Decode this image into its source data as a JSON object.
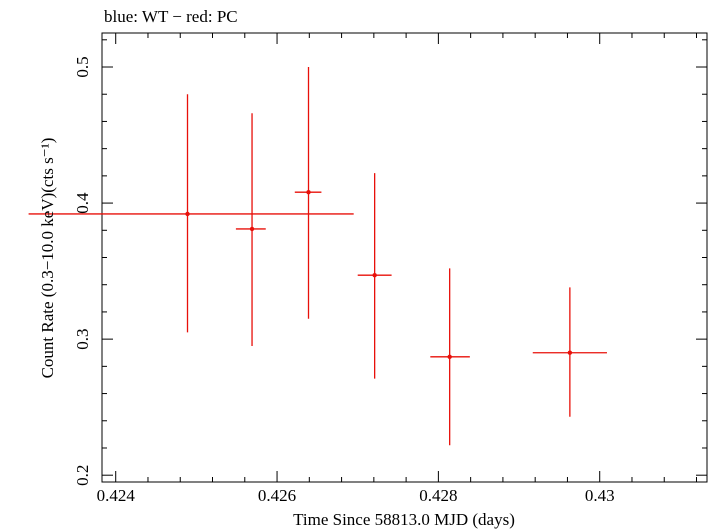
{
  "chart_data": {
    "type": "scatter",
    "title": "blue: WT − red: PC",
    "xlabel": "Time Since 58813.0 MJD (days)",
    "ylabel": "Count Rate (0.3−10.0 keV)(cts s⁻¹)",
    "xlim": [
      0.42383,
      0.43133
    ],
    "ylim": [
      0.195,
      0.525
    ],
    "x_ticks": [
      {
        "value": 0.424,
        "label": "0.424"
      },
      {
        "value": 0.426,
        "label": "0.426"
      },
      {
        "value": 0.428,
        "label": "0.428"
      },
      {
        "value": 0.43,
        "label": "0.43"
      }
    ],
    "y_ticks": [
      {
        "value": 0.2,
        "label": "0.2"
      },
      {
        "value": 0.3,
        "label": "0.3"
      },
      {
        "value": 0.4,
        "label": "0.4"
      },
      {
        "value": 0.5,
        "label": "0.5"
      }
    ],
    "series": [
      {
        "name": "PC",
        "color": "#e8100a",
        "points": [
          {
            "x": 0.42489,
            "xerr_lo": 0.00197,
            "xerr_hi": 0.00206,
            "y": 0.392,
            "y_lo": 0.305,
            "y_hi": 0.48
          },
          {
            "x": 0.42569,
            "xerr_lo": 0.0002,
            "xerr_hi": 0.00017,
            "y": 0.381,
            "y_lo": 0.295,
            "y_hi": 0.466
          },
          {
            "x": 0.42639,
            "xerr_lo": 0.00017,
            "xerr_hi": 0.00016,
            "y": 0.408,
            "y_lo": 0.315,
            "y_hi": 0.5
          },
          {
            "x": 0.42721,
            "xerr_lo": 0.00021,
            "xerr_hi": 0.00021,
            "y": 0.347,
            "y_lo": 0.271,
            "y_hi": 0.422
          },
          {
            "x": 0.42814,
            "xerr_lo": 0.00024,
            "xerr_hi": 0.00025,
            "y": 0.287,
            "y_lo": 0.222,
            "y_hi": 0.352
          },
          {
            "x": 0.42963,
            "xerr_lo": 0.00046,
            "xerr_hi": 0.00046,
            "y": 0.29,
            "y_lo": 0.243,
            "y_hi": 0.338
          }
        ]
      }
    ]
  }
}
